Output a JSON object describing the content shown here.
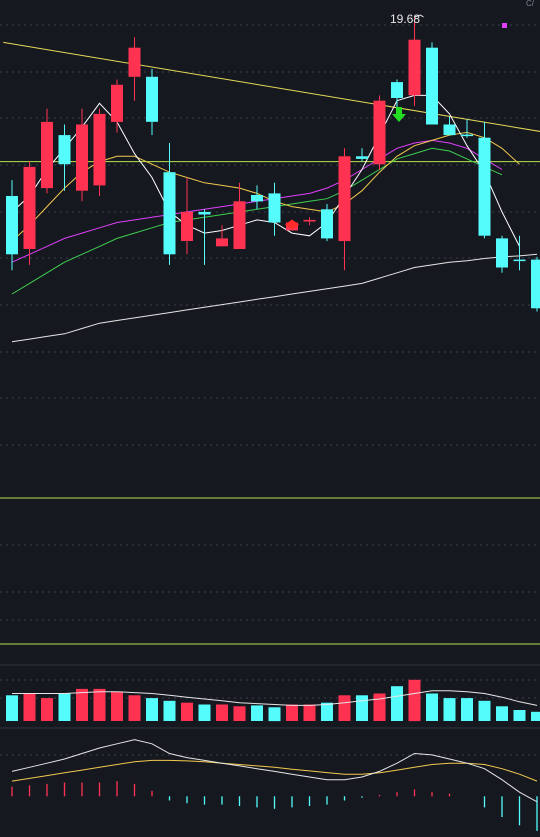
{
  "chart_data": {
    "type": "candlestick",
    "peak_label": "19.68",
    "corner_mark": "C/",
    "colors": {
      "background": "#161820",
      "up": "#ff3351",
      "down": "#54fcfc",
      "ma5": "#ffffff",
      "ma10": "#f2c94c",
      "ma20": "#e040fb",
      "ma30": "#3ecf4f",
      "ma60": "#e6e6e6",
      "trendline": "#e6d957",
      "hline": "#b6e34a",
      "buy_arrow": "#ff2a2a",
      "sell_arrow": "#22dd22",
      "marker": "#e040fb"
    },
    "candles": [
      {
        "o": 16.3,
        "c": 15.2,
        "h": 16.6,
        "l": 14.9
      },
      {
        "o": 15.3,
        "c": 16.85,
        "h": 16.95,
        "l": 15.0
      },
      {
        "o": 16.45,
        "c": 17.7,
        "h": 17.95,
        "l": 16.35
      },
      {
        "o": 17.45,
        "c": 16.9,
        "h": 17.65,
        "l": 16.4
      },
      {
        "o": 16.4,
        "c": 17.65,
        "h": 17.95,
        "l": 16.2
      },
      {
        "o": 16.5,
        "c": 17.85,
        "h": 17.95,
        "l": 16.3
      },
      {
        "o": 17.7,
        "c": 18.4,
        "h": 18.5,
        "l": 17.5
      },
      {
        "o": 18.55,
        "c": 19.1,
        "h": 19.3,
        "l": 18.1
      },
      {
        "o": 18.55,
        "c": 17.7,
        "h": 18.7,
        "l": 17.45
      },
      {
        "o": 16.75,
        "c": 15.2,
        "h": 17.3,
        "l": 15.0
      },
      {
        "o": 15.45,
        "c": 16.0,
        "h": 16.65,
        "l": 15.2
      },
      {
        "o": 16.0,
        "c": 15.95,
        "h": 16.05,
        "l": 15.0
      },
      {
        "o": 15.35,
        "c": 15.5,
        "h": 15.75,
        "l": 15.35
      },
      {
        "o": 15.3,
        "c": 16.2,
        "h": 16.55,
        "l": 15.3
      },
      {
        "o": 16.32,
        "c": 16.2,
        "h": 16.5,
        "l": 16.05
      },
      {
        "o": 16.35,
        "c": 15.8,
        "h": 16.55,
        "l": 15.55
      },
      {
        "o": 15.65,
        "c": 15.8,
        "h": 15.8,
        "l": 15.65
      },
      {
        "o": 15.82,
        "c": 15.85,
        "h": 15.9,
        "l": 15.75
      },
      {
        "o": 16.05,
        "c": 15.5,
        "h": 16.15,
        "l": 15.45
      },
      {
        "o": 15.45,
        "c": 17.05,
        "h": 17.2,
        "l": 14.9
      },
      {
        "o": 17.05,
        "c": 17.0,
        "h": 17.2,
        "l": 16.95
      },
      {
        "o": 16.9,
        "c": 18.1,
        "h": 18.2,
        "l": 16.8
      },
      {
        "o": 18.45,
        "c": 18.15,
        "h": 18.5,
        "l": 17.85
      },
      {
        "o": 18.2,
        "c": 19.25,
        "h": 19.68,
        "l": 18.0
      },
      {
        "o": 19.1,
        "c": 17.65,
        "h": 19.2,
        "l": 17.7
      },
      {
        "o": 17.65,
        "c": 17.45,
        "h": 17.8,
        "l": 17.45
      },
      {
        "o": 17.46,
        "c": 17.45,
        "h": 17.75,
        "l": 17.4
      },
      {
        "o": 17.4,
        "c": 15.55,
        "h": 17.7,
        "l": 15.5
      },
      {
        "o": 15.5,
        "c": 14.95,
        "h": 15.55,
        "l": 14.85
      },
      {
        "o": 15.1,
        "c": 15.08,
        "h": 15.55,
        "l": 14.9
      },
      {
        "o": 15.1,
        "c": 14.18,
        "h": 15.15,
        "l": 14.12
      }
    ],
    "ma5": [
      16.0,
      16.3,
      16.8,
      17.2,
      17.6,
      18.05,
      17.7,
      17.1,
      16.65,
      16.0,
      15.75,
      15.6,
      15.65,
      15.75,
      15.85,
      15.8,
      15.6,
      15.55,
      15.8,
      16.3,
      16.8,
      17.45,
      18.1,
      18.2,
      18.2,
      17.85,
      17.25,
      16.75,
      16.0,
      15.35
    ],
    "ma10": [
      15.45,
      15.75,
      16.1,
      16.45,
      16.75,
      16.95,
      17.05,
      17.05,
      16.9,
      16.75,
      16.65,
      16.55,
      16.5,
      16.45,
      16.35,
      16.2,
      16.1,
      16.05,
      16.0,
      16.15,
      16.4,
      16.75,
      17.05,
      17.25,
      17.35,
      17.45,
      17.5,
      17.4,
      17.2,
      16.9
    ],
    "ma20": [
      15.05,
      15.2,
      15.35,
      15.5,
      15.6,
      15.7,
      15.8,
      15.85,
      15.9,
      15.95,
      16.0,
      16.05,
      16.1,
      16.15,
      16.2,
      16.25,
      16.3,
      16.35,
      16.45,
      16.6,
      16.8,
      17.0,
      17.2,
      17.3,
      17.35,
      17.3,
      17.2,
      17.0,
      16.8
    ],
    "ma30": [
      14.45,
      14.65,
      14.85,
      15.05,
      15.2,
      15.35,
      15.5,
      15.6,
      15.7,
      15.8,
      15.85,
      15.9,
      15.95,
      16.0,
      16.05,
      16.1,
      16.15,
      16.2,
      16.25,
      16.4,
      16.6,
      16.8,
      17.0,
      17.1,
      17.2,
      17.15,
      17.0,
      16.85,
      16.7
    ],
    "ma60": [
      13.55,
      13.6,
      13.65,
      13.7,
      13.8,
      13.9,
      13.95,
      14.0,
      14.05,
      14.1,
      14.15,
      14.2,
      14.25,
      14.3,
      14.35,
      14.4,
      14.45,
      14.5,
      14.55,
      14.6,
      14.65,
      14.75,
      14.85,
      14.95,
      15.0,
      15.05,
      15.08,
      15.12,
      15.15,
      15.17,
      15.2
    ],
    "trendline": [
      [
        -0.5,
        19.2
      ],
      [
        30.5,
        17.5
      ]
    ],
    "hline_price": 16.95,
    "price_ylim": [
      10.6,
      20.0
    ],
    "buy_signal_index": 16,
    "sell_signal_index": 22,
    "volume": [
      28,
      30,
      25,
      30,
      35,
      35,
      32,
      28,
      25,
      22,
      20,
      18,
      18,
      16,
      17,
      15,
      18,
      18,
      20,
      28,
      28,
      30,
      38,
      45,
      30,
      25,
      25,
      22,
      16,
      12,
      10
    ],
    "volume_ma": [
      30,
      30,
      30,
      30,
      31,
      32,
      32,
      31,
      30,
      28,
      26,
      24,
      22,
      20,
      19,
      18,
      17,
      17,
      18,
      20,
      22,
      24,
      27,
      30,
      33,
      33,
      32,
      30,
      26,
      21,
      17
    ],
    "volume_ylim": [
      0,
      60
    ],
    "macd_bars": [
      0.35,
      0.4,
      0.45,
      0.5,
      0.5,
      0.5,
      0.55,
      0.45,
      0.2,
      -0.15,
      -0.25,
      -0.3,
      -0.3,
      -0.35,
      -0.4,
      -0.45,
      -0.4,
      -0.35,
      -0.3,
      -0.15,
      -0.05,
      0.05,
      0.15,
      0.25,
      0.15,
      0.1,
      0.0,
      -0.4,
      -0.75,
      -1.05,
      -1.25
    ],
    "macd_dif": [
      0.9,
      1.05,
      1.2,
      1.35,
      1.55,
      1.75,
      1.9,
      2.05,
      1.9,
      1.55,
      1.4,
      1.3,
      1.2,
      1.1,
      1.0,
      0.9,
      0.8,
      0.7,
      0.6,
      0.6,
      0.7,
      0.9,
      1.2,
      1.55,
      1.5,
      1.35,
      1.2,
      1.0,
      0.6,
      0.15,
      -0.2
    ],
    "macd_dea": [
      0.55,
      0.65,
      0.75,
      0.85,
      0.95,
      1.05,
      1.15,
      1.25,
      1.3,
      1.3,
      1.28,
      1.25,
      1.2,
      1.15,
      1.1,
      1.05,
      0.98,
      0.92,
      0.86,
      0.8,
      0.8,
      0.85,
      0.95,
      1.05,
      1.15,
      1.2,
      1.2,
      1.15,
      1.0,
      0.8,
      0.55
    ],
    "macd_ylim": [
      -1.4,
      2.4
    ]
  }
}
